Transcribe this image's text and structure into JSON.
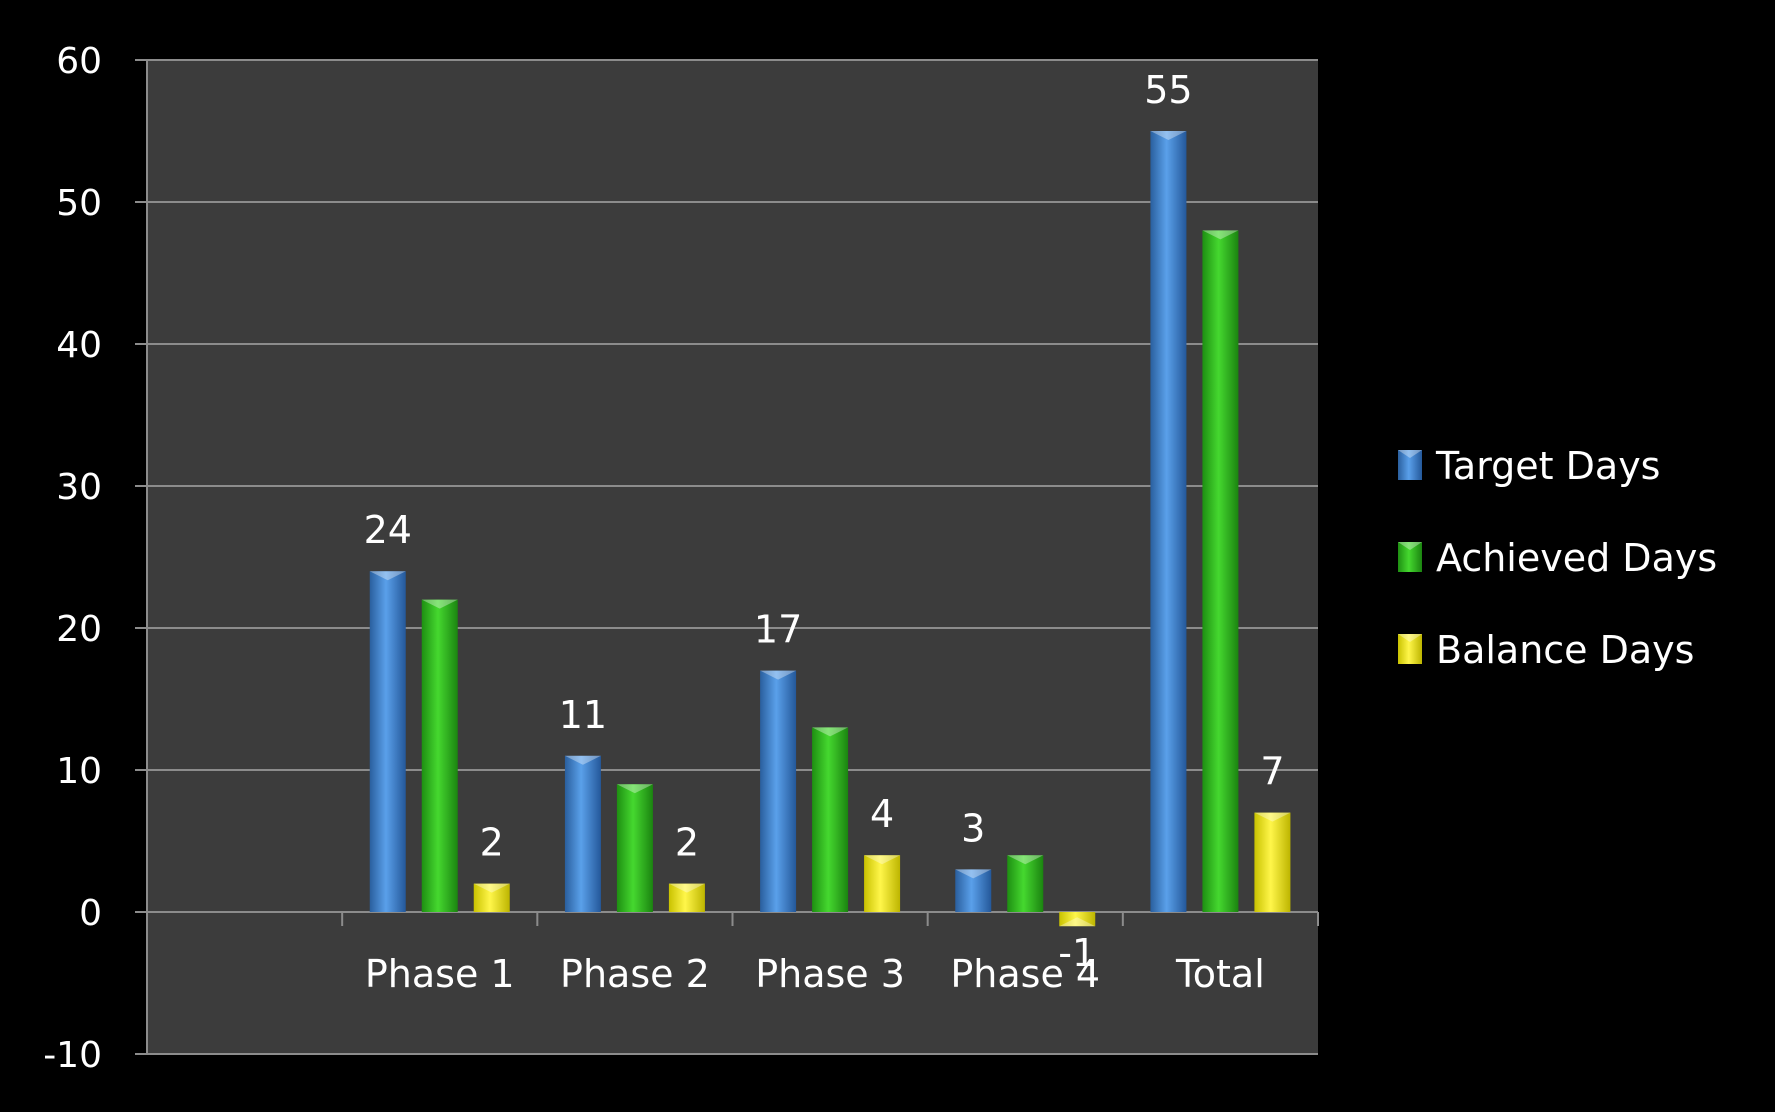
{
  "colors": {
    "background": "#000000",
    "plot_area": "#3c3c3c",
    "gridline": "#8c8c8c",
    "text": "#ffffff"
  },
  "chart_data": {
    "type": "bar",
    "categories": [
      "",
      "Phase 1",
      "Phase 2",
      "Phase 3",
      "Phase 4",
      "Total"
    ],
    "series": [
      {
        "name": "Target Days",
        "values": [
          null,
          24,
          11,
          17,
          3,
          55
        ],
        "color": "#3b7fd0"
      },
      {
        "name": "Achieved Days",
        "values": [
          null,
          22,
          9,
          13,
          4,
          48
        ],
        "color": "#2db81a"
      },
      {
        "name": "Balance Days",
        "values": [
          null,
          2,
          2,
          4,
          -1,
          7
        ],
        "color": "#f2ea00"
      }
    ],
    "data_labels": {
      "Target Days": [
        null,
        "24",
        "11",
        "17",
        "3",
        "55"
      ],
      "Achieved Days": [
        null,
        null,
        null,
        null,
        null,
        null
      ],
      "Balance Days": [
        null,
        "2",
        "2",
        "4",
        "-1",
        "7"
      ]
    },
    "ylim": [
      -10,
      60
    ],
    "yticks": [
      -10,
      0,
      10,
      20,
      30,
      40,
      50,
      60
    ],
    "grid": true,
    "legend_position": "right",
    "title": "",
    "xlabel": "",
    "ylabel": ""
  }
}
